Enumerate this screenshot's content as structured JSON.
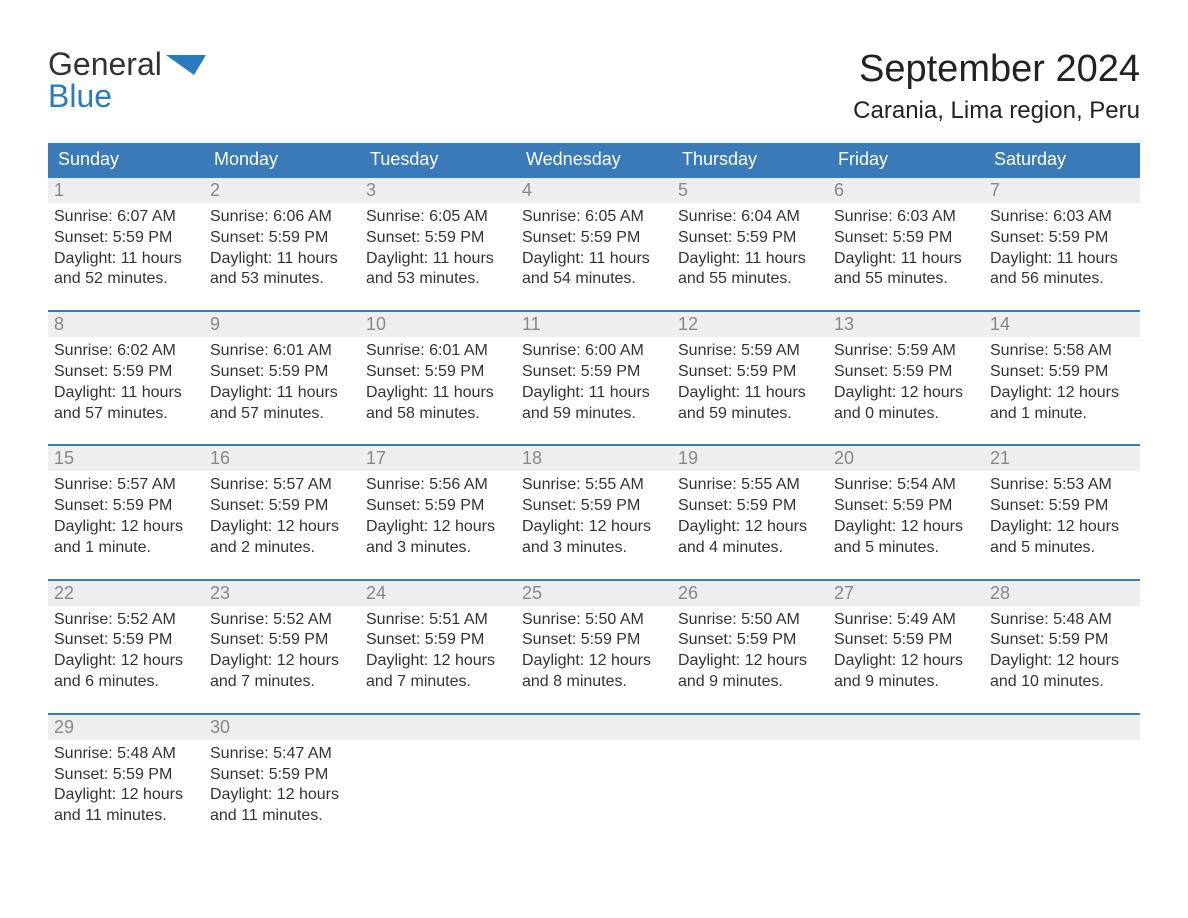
{
  "logo": {
    "word1": "General",
    "word2": "Blue"
  },
  "title": "September 2024",
  "location": "Carania, Lima region, Peru",
  "colors": {
    "header_bg": "#3a7ab8",
    "header_text": "#ffffff",
    "row_divider": "#3a7ab8",
    "daynum_bg": "#eeeeee",
    "daynum_text": "#888888",
    "body_text": "#333333",
    "logo_blue": "#2a7abf",
    "background": "#ffffff"
  },
  "typography": {
    "title_fontsize_pt": 28,
    "location_fontsize_pt": 18,
    "dayheader_fontsize_pt": 14,
    "daynum_fontsize_pt": 14,
    "body_fontsize_pt": 12,
    "font_family": "Arial"
  },
  "day_headers": [
    "Sunday",
    "Monday",
    "Tuesday",
    "Wednesday",
    "Thursday",
    "Friday",
    "Saturday"
  ],
  "weeks": [
    [
      {
        "n": "1",
        "sunrise": "Sunrise: 6:07 AM",
        "sunset": "Sunset: 5:59 PM",
        "daylight": "Daylight: 11 hours and 52 minutes."
      },
      {
        "n": "2",
        "sunrise": "Sunrise: 6:06 AM",
        "sunset": "Sunset: 5:59 PM",
        "daylight": "Daylight: 11 hours and 53 minutes."
      },
      {
        "n": "3",
        "sunrise": "Sunrise: 6:05 AM",
        "sunset": "Sunset: 5:59 PM",
        "daylight": "Daylight: 11 hours and 53 minutes."
      },
      {
        "n": "4",
        "sunrise": "Sunrise: 6:05 AM",
        "sunset": "Sunset: 5:59 PM",
        "daylight": "Daylight: 11 hours and 54 minutes."
      },
      {
        "n": "5",
        "sunrise": "Sunrise: 6:04 AM",
        "sunset": "Sunset: 5:59 PM",
        "daylight": "Daylight: 11 hours and 55 minutes."
      },
      {
        "n": "6",
        "sunrise": "Sunrise: 6:03 AM",
        "sunset": "Sunset: 5:59 PM",
        "daylight": "Daylight: 11 hours and 55 minutes."
      },
      {
        "n": "7",
        "sunrise": "Sunrise: 6:03 AM",
        "sunset": "Sunset: 5:59 PM",
        "daylight": "Daylight: 11 hours and 56 minutes."
      }
    ],
    [
      {
        "n": "8",
        "sunrise": "Sunrise: 6:02 AM",
        "sunset": "Sunset: 5:59 PM",
        "daylight": "Daylight: 11 hours and 57 minutes."
      },
      {
        "n": "9",
        "sunrise": "Sunrise: 6:01 AM",
        "sunset": "Sunset: 5:59 PM",
        "daylight": "Daylight: 11 hours and 57 minutes."
      },
      {
        "n": "10",
        "sunrise": "Sunrise: 6:01 AM",
        "sunset": "Sunset: 5:59 PM",
        "daylight": "Daylight: 11 hours and 58 minutes."
      },
      {
        "n": "11",
        "sunrise": "Sunrise: 6:00 AM",
        "sunset": "Sunset: 5:59 PM",
        "daylight": "Daylight: 11 hours and 59 minutes."
      },
      {
        "n": "12",
        "sunrise": "Sunrise: 5:59 AM",
        "sunset": "Sunset: 5:59 PM",
        "daylight": "Daylight: 11 hours and 59 minutes."
      },
      {
        "n": "13",
        "sunrise": "Sunrise: 5:59 AM",
        "sunset": "Sunset: 5:59 PM",
        "daylight": "Daylight: 12 hours and 0 minutes."
      },
      {
        "n": "14",
        "sunrise": "Sunrise: 5:58 AM",
        "sunset": "Sunset: 5:59 PM",
        "daylight": "Daylight: 12 hours and 1 minute."
      }
    ],
    [
      {
        "n": "15",
        "sunrise": "Sunrise: 5:57 AM",
        "sunset": "Sunset: 5:59 PM",
        "daylight": "Daylight: 12 hours and 1 minute."
      },
      {
        "n": "16",
        "sunrise": "Sunrise: 5:57 AM",
        "sunset": "Sunset: 5:59 PM",
        "daylight": "Daylight: 12 hours and 2 minutes."
      },
      {
        "n": "17",
        "sunrise": "Sunrise: 5:56 AM",
        "sunset": "Sunset: 5:59 PM",
        "daylight": "Daylight: 12 hours and 3 minutes."
      },
      {
        "n": "18",
        "sunrise": "Sunrise: 5:55 AM",
        "sunset": "Sunset: 5:59 PM",
        "daylight": "Daylight: 12 hours and 3 minutes."
      },
      {
        "n": "19",
        "sunrise": "Sunrise: 5:55 AM",
        "sunset": "Sunset: 5:59 PM",
        "daylight": "Daylight: 12 hours and 4 minutes."
      },
      {
        "n": "20",
        "sunrise": "Sunrise: 5:54 AM",
        "sunset": "Sunset: 5:59 PM",
        "daylight": "Daylight: 12 hours and 5 minutes."
      },
      {
        "n": "21",
        "sunrise": "Sunrise: 5:53 AM",
        "sunset": "Sunset: 5:59 PM",
        "daylight": "Daylight: 12 hours and 5 minutes."
      }
    ],
    [
      {
        "n": "22",
        "sunrise": "Sunrise: 5:52 AM",
        "sunset": "Sunset: 5:59 PM",
        "daylight": "Daylight: 12 hours and 6 minutes."
      },
      {
        "n": "23",
        "sunrise": "Sunrise: 5:52 AM",
        "sunset": "Sunset: 5:59 PM",
        "daylight": "Daylight: 12 hours and 7 minutes."
      },
      {
        "n": "24",
        "sunrise": "Sunrise: 5:51 AM",
        "sunset": "Sunset: 5:59 PM",
        "daylight": "Daylight: 12 hours and 7 minutes."
      },
      {
        "n": "25",
        "sunrise": "Sunrise: 5:50 AM",
        "sunset": "Sunset: 5:59 PM",
        "daylight": "Daylight: 12 hours and 8 minutes."
      },
      {
        "n": "26",
        "sunrise": "Sunrise: 5:50 AM",
        "sunset": "Sunset: 5:59 PM",
        "daylight": "Daylight: 12 hours and 9 minutes."
      },
      {
        "n": "27",
        "sunrise": "Sunrise: 5:49 AM",
        "sunset": "Sunset: 5:59 PM",
        "daylight": "Daylight: 12 hours and 9 minutes."
      },
      {
        "n": "28",
        "sunrise": "Sunrise: 5:48 AM",
        "sunset": "Sunset: 5:59 PM",
        "daylight": "Daylight: 12 hours and 10 minutes."
      }
    ],
    [
      {
        "n": "29",
        "sunrise": "Sunrise: 5:48 AM",
        "sunset": "Sunset: 5:59 PM",
        "daylight": "Daylight: 12 hours and 11 minutes."
      },
      {
        "n": "30",
        "sunrise": "Sunrise: 5:47 AM",
        "sunset": "Sunset: 5:59 PM",
        "daylight": "Daylight: 12 hours and 11 minutes."
      },
      {
        "empty": true
      },
      {
        "empty": true
      },
      {
        "empty": true
      },
      {
        "empty": true
      },
      {
        "empty": true
      }
    ]
  ]
}
